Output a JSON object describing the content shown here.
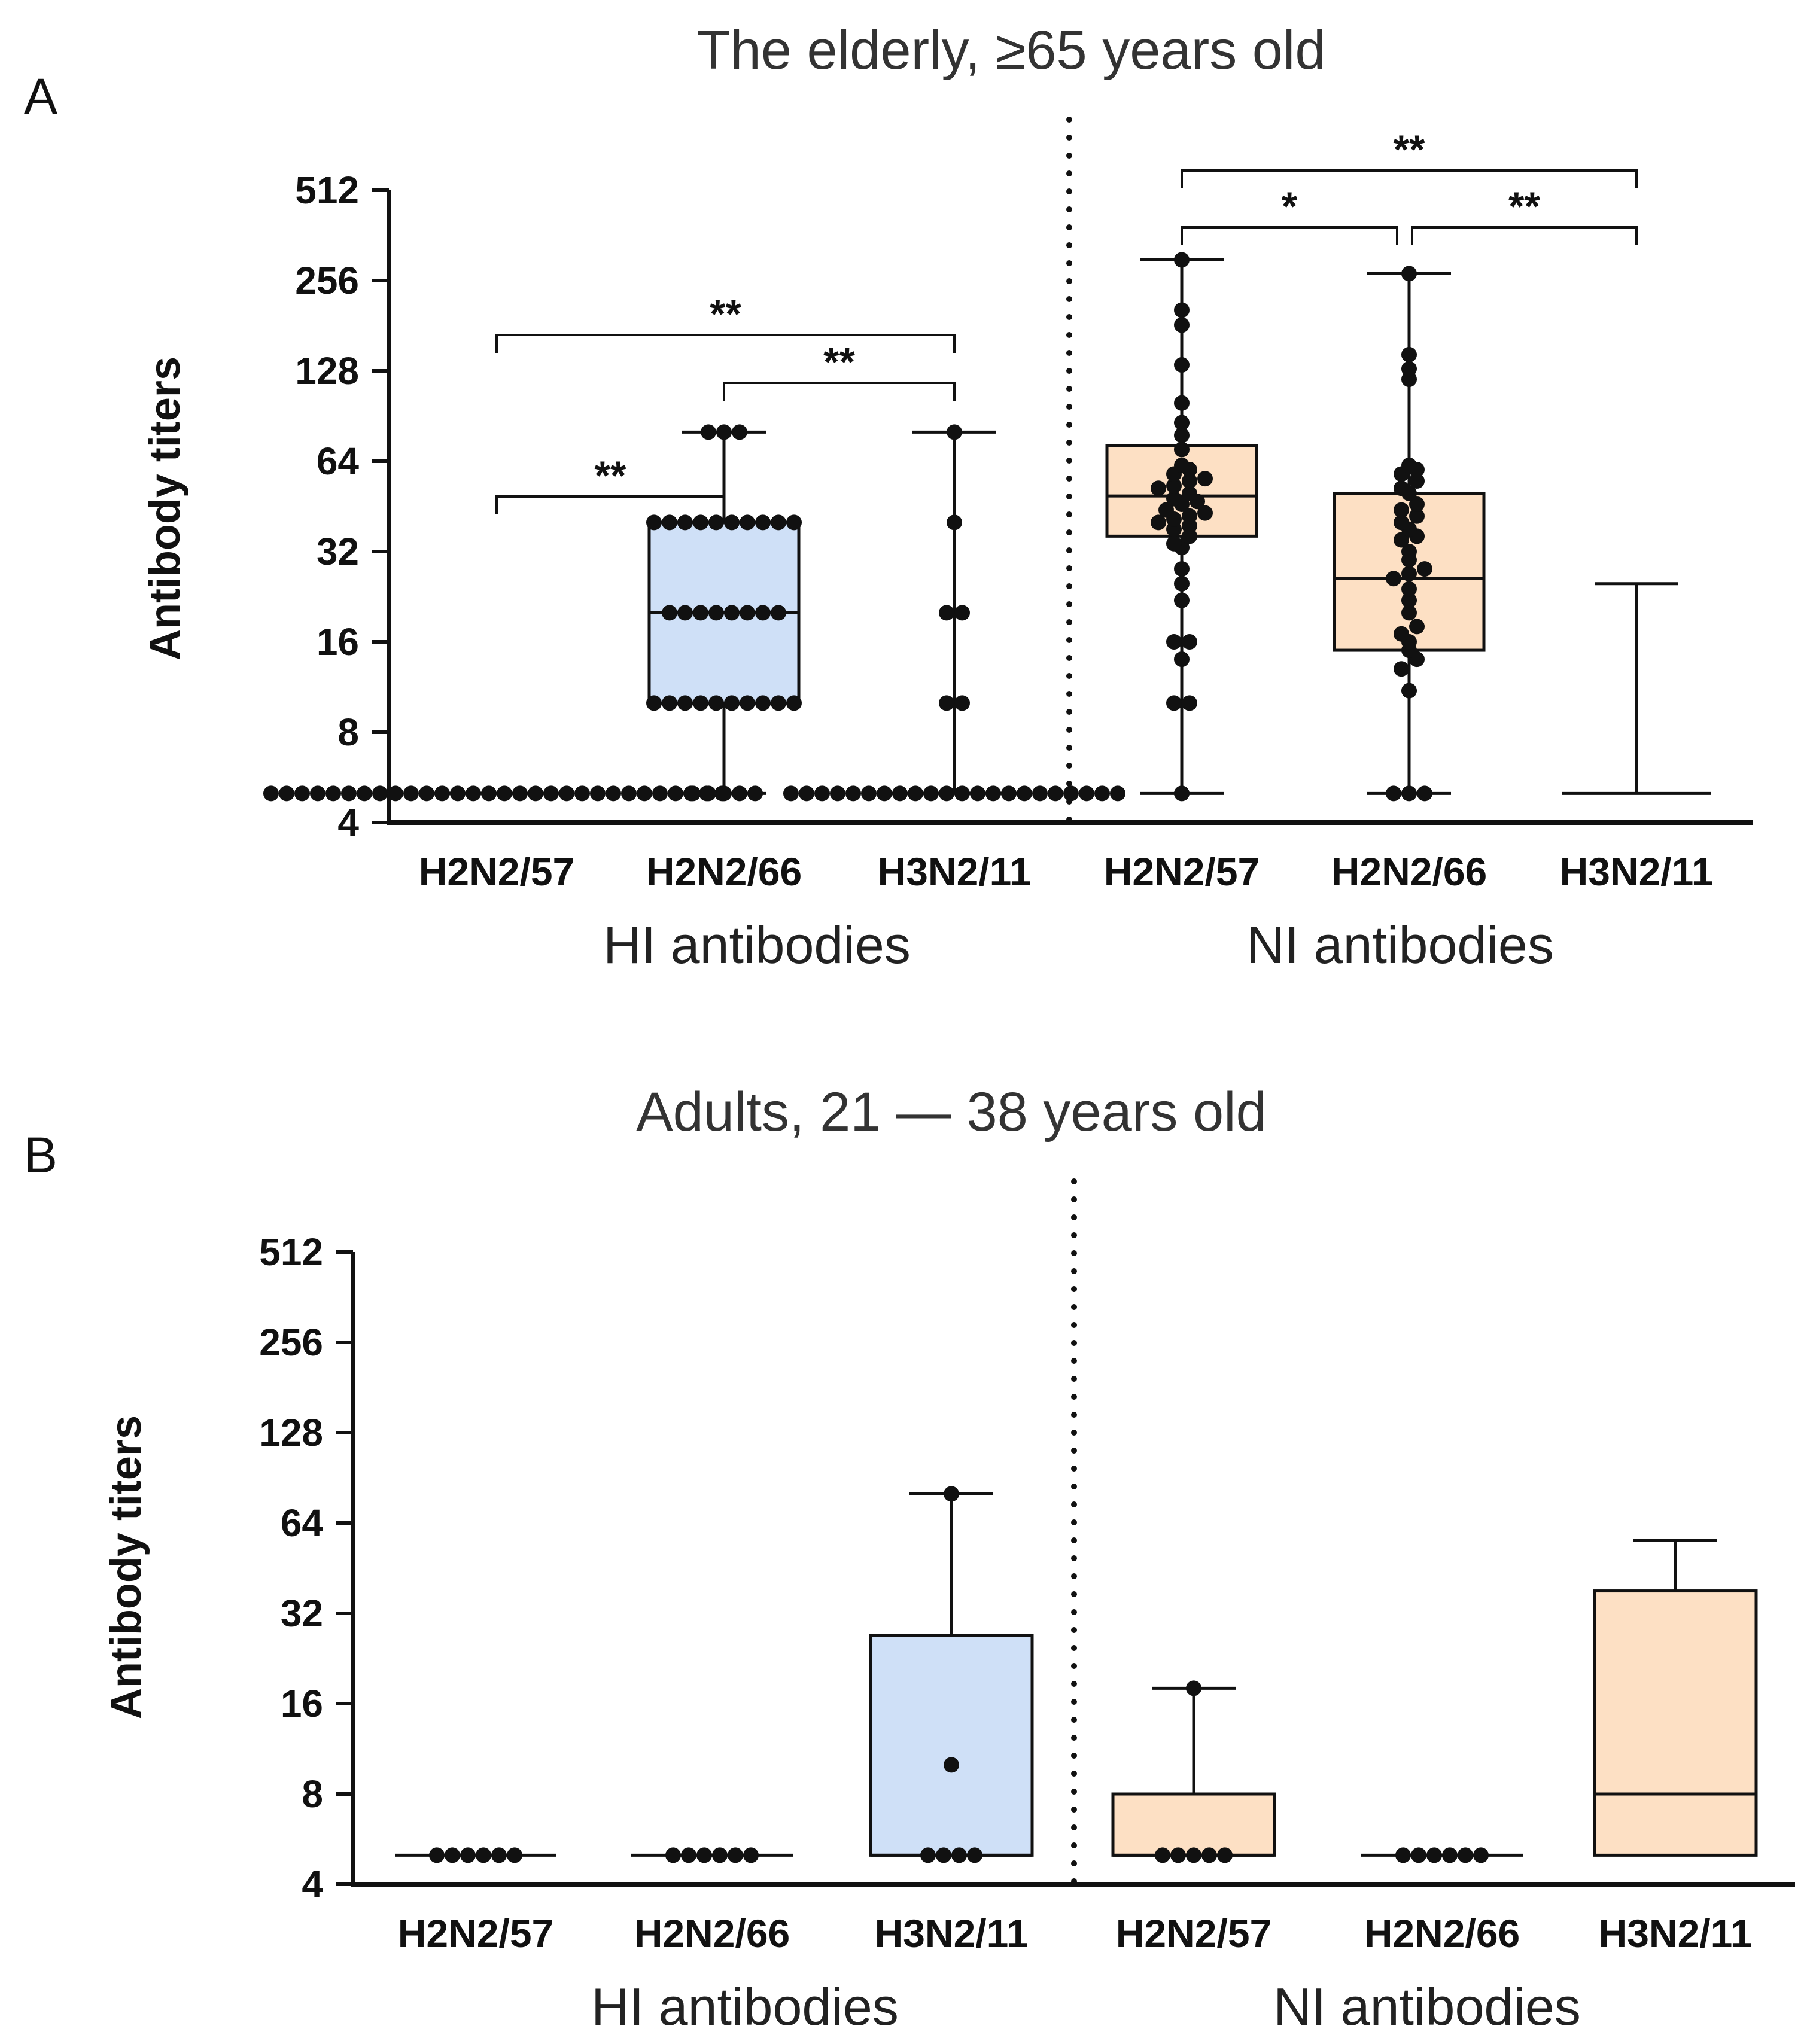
{
  "chart_data": [
    {
      "type": "box",
      "panel": "A",
      "title": "The elderly, ≥65 years old",
      "ylabel": "Antibody titers",
      "yscale": "log2",
      "ylim": [
        4,
        512
      ],
      "yticks": [
        4,
        8,
        16,
        32,
        64,
        128,
        256,
        512
      ],
      "groups": [
        {
          "label": "HI antibodies",
          "categories": [
            0,
            1,
            2
          ]
        },
        {
          "label": "NI antibodies",
          "categories": [
            3,
            4,
            5
          ]
        }
      ],
      "categories": [
        "H2N2/57",
        "H2N2/66",
        "H3N2/11",
        "H2N2/57",
        "H2N2/66",
        "H3N2/11"
      ],
      "boxes": [
        {
          "category": "H2N2/57",
          "min": 5,
          "q1": 5,
          "median": 5,
          "q3": 5,
          "max": 5,
          "fill": "#ffffff",
          "points": [
            5,
            5,
            5,
            5,
            5,
            5,
            5,
            5,
            5,
            5,
            5,
            5,
            5,
            5,
            5,
            5,
            5,
            5,
            5,
            5,
            5,
            5,
            5,
            5,
            5,
            5,
            5,
            5,
            5,
            5
          ]
        },
        {
          "category": "H2N2/66",
          "min": 5,
          "q1": 10,
          "median": 20,
          "q3": 40,
          "max": 80,
          "fill": "#cfe0f7",
          "points": [
            5,
            5,
            5,
            5,
            5,
            10,
            10,
            10,
            10,
            10,
            10,
            10,
            10,
            10,
            10,
            20,
            20,
            20,
            20,
            20,
            20,
            20,
            20,
            40,
            40,
            40,
            40,
            40,
            40,
            40,
            40,
            40,
            40,
            80,
            80,
            80
          ]
        },
        {
          "category": "H3N2/11",
          "min": 5,
          "q1": 5,
          "median": 5,
          "q3": 5,
          "max": 80,
          "fill": "#ffffff",
          "points": [
            5,
            5,
            5,
            5,
            5,
            5,
            5,
            5,
            5,
            5,
            5,
            5,
            5,
            5,
            5,
            5,
            5,
            5,
            5,
            5,
            5,
            5,
            10,
            10,
            20,
            20,
            40,
            80
          ]
        },
        {
          "category": "H2N2/57",
          "min": 5,
          "q1": 36,
          "median": 49,
          "q3": 72,
          "max": 300,
          "fill": "#fde0c4",
          "points": [
            5,
            10,
            10,
            14,
            16,
            16,
            22,
            25,
            28,
            33,
            34,
            36,
            38,
            39,
            40,
            41,
            42,
            43,
            44,
            46,
            47,
            48,
            50,
            52,
            53,
            55,
            56,
            58,
            60,
            62,
            70,
            78,
            86,
            100,
            134,
            182,
            204,
            300
          ]
        },
        {
          "category": "H2N2/66",
          "min": 5,
          "q1": 15,
          "median": 26,
          "q3": 50,
          "max": 270,
          "fill": "#fde0c4",
          "points": [
            5,
            5,
            5,
            11,
            13,
            14,
            15,
            16,
            17,
            18,
            20,
            22,
            24,
            26,
            27,
            28,
            30,
            32,
            35,
            36,
            38,
            40,
            42,
            44,
            46,
            50,
            52,
            55,
            58,
            60,
            62,
            120,
            130,
            145,
            270
          ]
        },
        {
          "category": "H3N2/11",
          "min": 5,
          "q1": 5,
          "median": 5,
          "q3": 5,
          "max": 25,
          "fill": "#ffffff",
          "points": []
        }
      ],
      "significance": [
        {
          "from": 0,
          "to": 1,
          "label": "**"
        },
        {
          "from": 0,
          "to": 2,
          "label": "**"
        },
        {
          "from": 1,
          "to": 2,
          "label": "**"
        },
        {
          "from": 3,
          "to": 4,
          "label": "*"
        },
        {
          "from": 4,
          "to": 5,
          "label": "**"
        },
        {
          "from": 3,
          "to": 5,
          "label": "**"
        }
      ]
    },
    {
      "type": "box",
      "panel": "B",
      "title": "Adults, 21 — 38 years old",
      "ylabel": "Antibody titers",
      "yscale": "log2",
      "ylim": [
        4,
        512
      ],
      "yticks": [
        4,
        8,
        16,
        32,
        64,
        128,
        256,
        512
      ],
      "groups": [
        {
          "label": "HI antibodies",
          "categories": [
            0,
            1,
            2
          ]
        },
        {
          "label": "NI antibodies",
          "categories": [
            3,
            4,
            5
          ]
        }
      ],
      "categories": [
        "H2N2/57",
        "H2N2/66",
        "H3N2/11",
        "H2N2/57",
        "H2N2/66",
        "H3N2/11"
      ],
      "boxes": [
        {
          "category": "H2N2/57",
          "min": 5,
          "q1": 5,
          "median": 5,
          "q3": 5,
          "max": 5,
          "fill": "#ffffff",
          "points": [
            5,
            5,
            5,
            5,
            5,
            5
          ]
        },
        {
          "category": "H2N2/66",
          "min": 5,
          "q1": 5,
          "median": 5,
          "q3": 5,
          "max": 5,
          "fill": "#ffffff",
          "points": [
            5,
            5,
            5,
            5,
            5,
            5
          ]
        },
        {
          "category": "H3N2/11",
          "min": 5,
          "q1": 5,
          "median": 5,
          "q3": 27,
          "max": 80,
          "fill": "#cfe0f7",
          "points": [
            5,
            5,
            5,
            5,
            10,
            80
          ]
        },
        {
          "category": "H2N2/57",
          "min": 5,
          "q1": 5,
          "median": 5,
          "q3": 8,
          "max": 18,
          "fill": "#fde0c4",
          "points": [
            5,
            5,
            5,
            5,
            5,
            18
          ]
        },
        {
          "category": "H2N2/66",
          "min": 5,
          "q1": 5,
          "median": 5,
          "q3": 5,
          "max": 5,
          "fill": "#ffffff",
          "points": [
            5,
            5,
            5,
            5,
            5,
            5
          ]
        },
        {
          "category": "H3N2/11",
          "min": 5,
          "q1": 5,
          "median": 8,
          "q3": 38,
          "max": 56,
          "fill": "#fde0c4",
          "points": []
        }
      ],
      "significance": []
    }
  ]
}
